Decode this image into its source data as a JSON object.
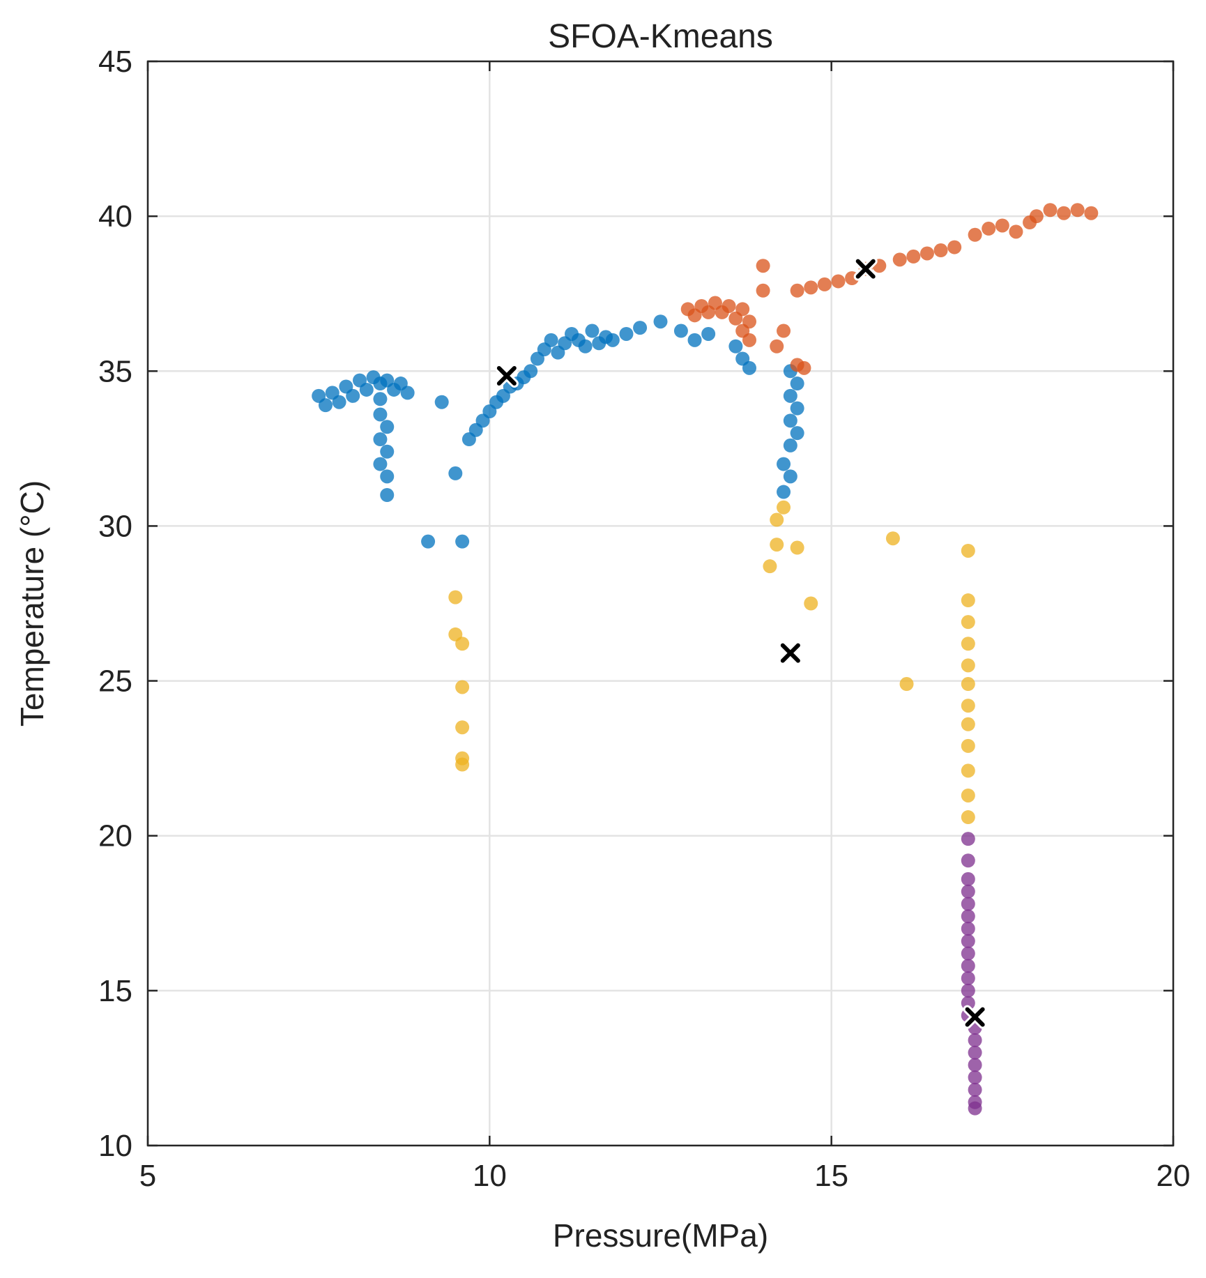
{
  "chart_data": {
    "type": "scatter",
    "title": "SFOA-Kmeans",
    "xlabel": "Pressure(MPa)",
    "ylabel": "Temperature (°C)",
    "xlim": [
      5,
      20
    ],
    "ylim": [
      10,
      45
    ],
    "xticks": [
      "5",
      "10",
      "15",
      "20"
    ],
    "yticks": [
      "10",
      "15",
      "20",
      "25",
      "30",
      "35",
      "40",
      "45"
    ],
    "grid": true,
    "legend": "none",
    "colors": {
      "blue": "#0072BD",
      "orange": "#D95319",
      "yellow": "#EDB120",
      "purple": "#7E2F8E",
      "centroid": "#000000"
    },
    "series": [
      {
        "color": "#0072BD",
        "points": [
          [
            7.5,
            34.2
          ],
          [
            7.6,
            33.9
          ],
          [
            7.7,
            34.3
          ],
          [
            7.8,
            34.0
          ],
          [
            7.9,
            34.5
          ],
          [
            8.0,
            34.2
          ],
          [
            8.1,
            34.7
          ],
          [
            8.2,
            34.4
          ],
          [
            8.3,
            34.8
          ],
          [
            8.4,
            34.6
          ],
          [
            8.5,
            34.7
          ],
          [
            8.6,
            34.4
          ],
          [
            8.7,
            34.6
          ],
          [
            8.8,
            34.3
          ],
          [
            8.4,
            34.1
          ],
          [
            8.4,
            33.6
          ],
          [
            8.5,
            33.2
          ],
          [
            8.4,
            32.8
          ],
          [
            8.5,
            32.4
          ],
          [
            8.4,
            32.0
          ],
          [
            8.5,
            31.6
          ],
          [
            8.5,
            31.0
          ],
          [
            9.1,
            29.5
          ],
          [
            9.3,
            34.0
          ],
          [
            9.5,
            31.7
          ],
          [
            9.6,
            29.5
          ],
          [
            9.7,
            32.8
          ],
          [
            9.8,
            33.1
          ],
          [
            9.9,
            33.4
          ],
          [
            10.0,
            33.7
          ],
          [
            10.1,
            34.0
          ],
          [
            10.2,
            34.2
          ],
          [
            10.3,
            34.5
          ],
          [
            10.4,
            34.6
          ],
          [
            10.5,
            34.8
          ],
          [
            10.6,
            35.0
          ],
          [
            10.7,
            35.4
          ],
          [
            10.8,
            35.7
          ],
          [
            10.9,
            36.0
          ],
          [
            11.0,
            35.6
          ],
          [
            11.1,
            35.9
          ],
          [
            11.2,
            36.2
          ],
          [
            11.3,
            36.0
          ],
          [
            11.4,
            35.8
          ],
          [
            11.5,
            36.3
          ],
          [
            11.6,
            35.9
          ],
          [
            11.7,
            36.1
          ],
          [
            11.8,
            36.0
          ],
          [
            12.0,
            36.2
          ],
          [
            12.2,
            36.4
          ],
          [
            12.5,
            36.6
          ],
          [
            12.8,
            36.3
          ],
          [
            13.0,
            36.0
          ],
          [
            13.2,
            36.2
          ],
          [
            13.6,
            35.8
          ],
          [
            13.7,
            35.4
          ],
          [
            13.8,
            35.1
          ],
          [
            14.4,
            35.0
          ],
          [
            14.5,
            34.6
          ],
          [
            14.4,
            34.2
          ],
          [
            14.5,
            33.8
          ],
          [
            14.4,
            33.4
          ],
          [
            14.5,
            33.0
          ],
          [
            14.4,
            32.6
          ],
          [
            14.3,
            32.0
          ],
          [
            14.4,
            31.6
          ],
          [
            14.3,
            31.1
          ]
        ]
      },
      {
        "color": "#D95319",
        "points": [
          [
            12.9,
            37.0
          ],
          [
            13.0,
            36.8
          ],
          [
            13.1,
            37.1
          ],
          [
            13.2,
            36.9
          ],
          [
            13.3,
            37.2
          ],
          [
            13.4,
            36.9
          ],
          [
            13.5,
            37.1
          ],
          [
            13.6,
            36.7
          ],
          [
            13.7,
            37.0
          ],
          [
            13.8,
            36.6
          ],
          [
            13.7,
            36.3
          ],
          [
            13.8,
            36.0
          ],
          [
            14.0,
            38.4
          ],
          [
            14.0,
            37.6
          ],
          [
            14.2,
            35.8
          ],
          [
            14.3,
            36.3
          ],
          [
            14.5,
            35.2
          ],
          [
            14.6,
            35.1
          ],
          [
            14.5,
            37.6
          ],
          [
            14.7,
            37.7
          ],
          [
            14.9,
            37.8
          ],
          [
            15.1,
            37.9
          ],
          [
            15.3,
            38.0
          ],
          [
            15.5,
            38.3
          ],
          [
            15.7,
            38.4
          ],
          [
            16.0,
            38.6
          ],
          [
            16.2,
            38.7
          ],
          [
            16.4,
            38.8
          ],
          [
            16.6,
            38.9
          ],
          [
            16.8,
            39.0
          ],
          [
            17.1,
            39.4
          ],
          [
            17.3,
            39.6
          ],
          [
            17.5,
            39.7
          ],
          [
            17.7,
            39.5
          ],
          [
            17.9,
            39.8
          ],
          [
            18.0,
            40.0
          ],
          [
            18.2,
            40.2
          ],
          [
            18.4,
            40.1
          ],
          [
            18.6,
            40.2
          ],
          [
            18.8,
            40.1
          ]
        ]
      },
      {
        "color": "#EDB120",
        "points": [
          [
            9.5,
            27.7
          ],
          [
            9.5,
            26.5
          ],
          [
            9.6,
            26.2
          ],
          [
            9.6,
            24.8
          ],
          [
            9.6,
            23.5
          ],
          [
            9.6,
            22.5
          ],
          [
            9.6,
            22.3
          ],
          [
            14.2,
            30.2
          ],
          [
            14.1,
            28.7
          ],
          [
            14.2,
            29.4
          ],
          [
            14.3,
            30.6
          ],
          [
            14.5,
            29.3
          ],
          [
            14.7,
            27.5
          ],
          [
            15.9,
            29.6
          ],
          [
            16.1,
            24.9
          ],
          [
            17.0,
            29.2
          ],
          [
            17.0,
            27.6
          ],
          [
            17.0,
            26.9
          ],
          [
            17.0,
            26.2
          ],
          [
            17.0,
            25.5
          ],
          [
            17.0,
            24.9
          ],
          [
            17.0,
            24.2
          ],
          [
            17.0,
            23.6
          ],
          [
            17.0,
            22.9
          ],
          [
            17.0,
            22.1
          ],
          [
            17.0,
            21.3
          ],
          [
            17.0,
            20.6
          ]
        ]
      },
      {
        "color": "#7E2F8E",
        "points": [
          [
            17.0,
            19.9
          ],
          [
            17.0,
            19.2
          ],
          [
            17.0,
            18.6
          ],
          [
            17.0,
            18.2
          ],
          [
            17.0,
            17.8
          ],
          [
            17.0,
            17.4
          ],
          [
            17.0,
            17.0
          ],
          [
            17.0,
            16.6
          ],
          [
            17.0,
            16.2
          ],
          [
            17.0,
            15.8
          ],
          [
            17.0,
            15.4
          ],
          [
            17.0,
            15.0
          ],
          [
            17.0,
            14.6
          ],
          [
            17.0,
            14.2
          ],
          [
            17.1,
            13.8
          ],
          [
            17.1,
            13.4
          ],
          [
            17.1,
            13.0
          ],
          [
            17.1,
            12.6
          ],
          [
            17.1,
            12.2
          ],
          [
            17.1,
            11.8
          ],
          [
            17.1,
            11.4
          ],
          [
            17.1,
            11.2
          ]
        ]
      }
    ],
    "centroids": [
      [
        10.25,
        34.85
      ],
      [
        15.5,
        38.3
      ],
      [
        14.4,
        25.9
      ],
      [
        17.1,
        14.15
      ]
    ]
  }
}
